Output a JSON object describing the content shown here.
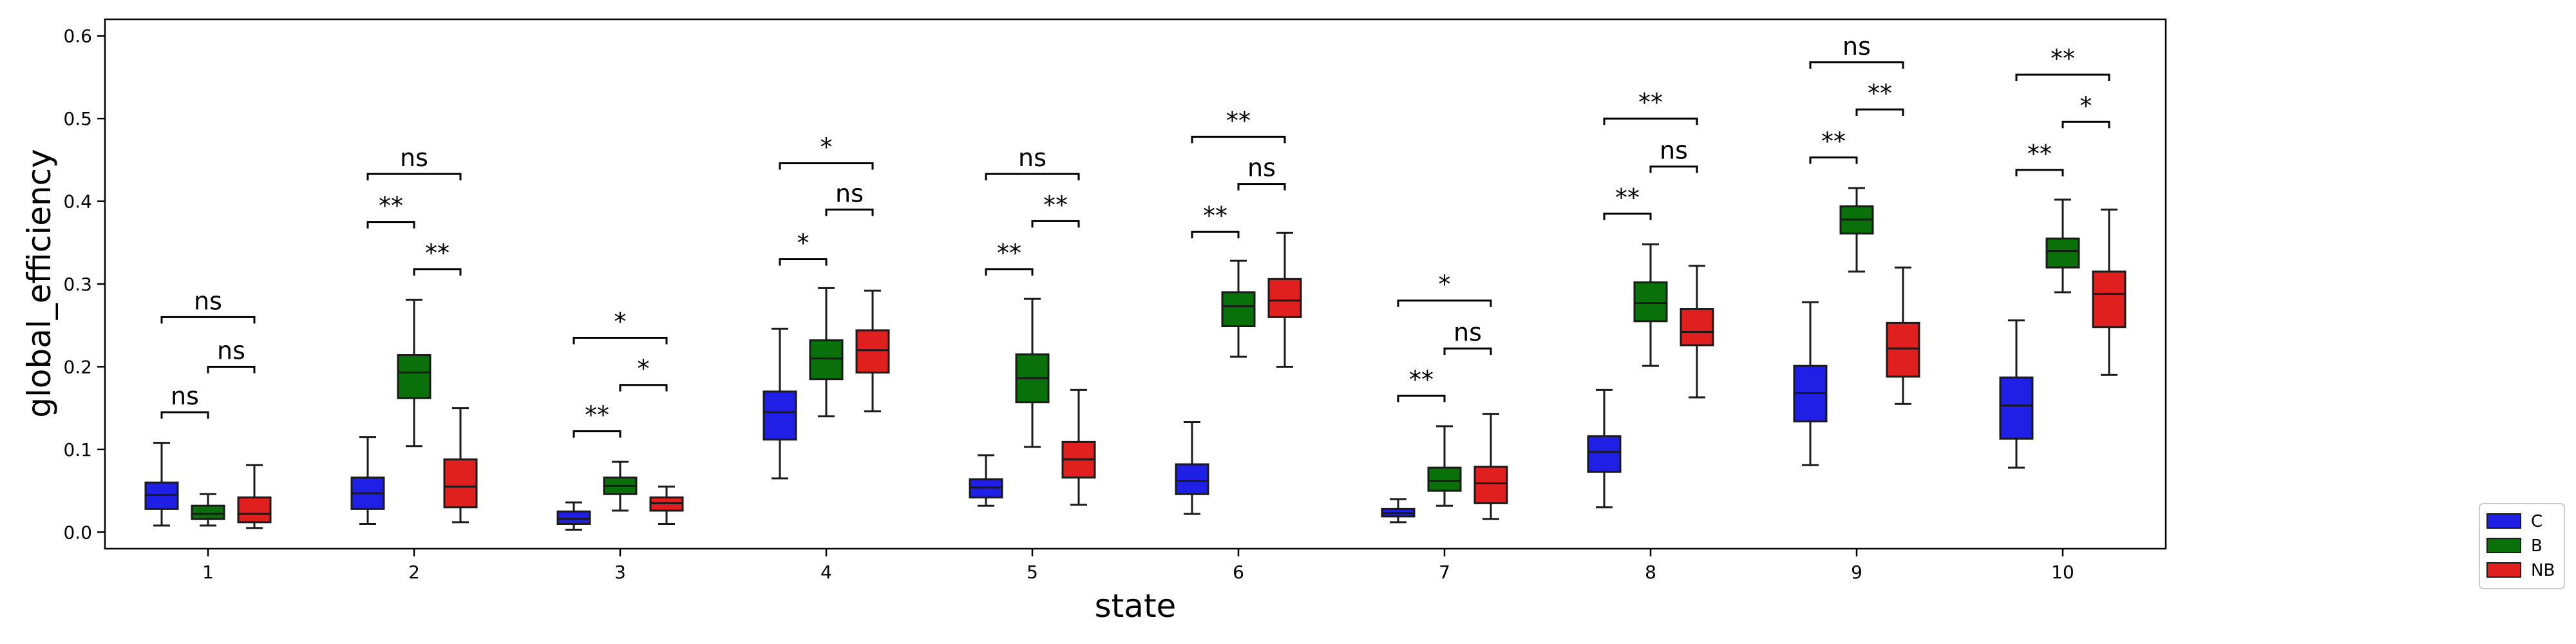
{
  "chart_data": {
    "type": "box",
    "title": "",
    "xlabel": "state",
    "ylabel": "global_efficiency",
    "ylim": [
      -0.02,
      0.62
    ],
    "yticks": [
      0.0,
      0.1,
      0.2,
      0.3,
      0.4,
      0.5,
      0.6
    ],
    "ytick_labels": [
      "0.0",
      "0.1",
      "0.2",
      "0.3",
      "0.4",
      "0.5",
      "0.6"
    ],
    "categories": [
      "1",
      "2",
      "3",
      "4",
      "5",
      "6",
      "7",
      "8",
      "9",
      "10"
    ],
    "legend_position": "outside-right",
    "series": [
      {
        "name": "C",
        "color": "#1f1fe6",
        "boxes": [
          {
            "wlo": 0.008,
            "q1": 0.028,
            "med": 0.045,
            "q3": 0.06,
            "whi": 0.108
          },
          {
            "wlo": 0.01,
            "q1": 0.028,
            "med": 0.047,
            "q3": 0.066,
            "whi": 0.115
          },
          {
            "wlo": 0.003,
            "q1": 0.01,
            "med": 0.016,
            "q3": 0.025,
            "whi": 0.036
          },
          {
            "wlo": 0.065,
            "q1": 0.112,
            "med": 0.145,
            "q3": 0.17,
            "whi": 0.246
          },
          {
            "wlo": 0.032,
            "q1": 0.042,
            "med": 0.054,
            "q3": 0.064,
            "whi": 0.093
          },
          {
            "wlo": 0.022,
            "q1": 0.046,
            "med": 0.062,
            "q3": 0.082,
            "whi": 0.133
          },
          {
            "wlo": 0.012,
            "q1": 0.019,
            "med": 0.023,
            "q3": 0.028,
            "whi": 0.04
          },
          {
            "wlo": 0.03,
            "q1": 0.073,
            "med": 0.097,
            "q3": 0.116,
            "whi": 0.172
          },
          {
            "wlo": 0.081,
            "q1": 0.134,
            "med": 0.168,
            "q3": 0.201,
            "whi": 0.278
          },
          {
            "wlo": 0.078,
            "q1": 0.113,
            "med": 0.153,
            "q3": 0.187,
            "whi": 0.256
          }
        ]
      },
      {
        "name": "B",
        "color": "#0a700a",
        "boxes": [
          {
            "wlo": 0.008,
            "q1": 0.016,
            "med": 0.022,
            "q3": 0.032,
            "whi": 0.046
          },
          {
            "wlo": 0.104,
            "q1": 0.162,
            "med": 0.193,
            "q3": 0.214,
            "whi": 0.281
          },
          {
            "wlo": 0.026,
            "q1": 0.046,
            "med": 0.056,
            "q3": 0.066,
            "whi": 0.085
          },
          {
            "wlo": 0.14,
            "q1": 0.185,
            "med": 0.21,
            "q3": 0.232,
            "whi": 0.295
          },
          {
            "wlo": 0.103,
            "q1": 0.157,
            "med": 0.186,
            "q3": 0.215,
            "whi": 0.282
          },
          {
            "wlo": 0.212,
            "q1": 0.249,
            "med": 0.273,
            "q3": 0.29,
            "whi": 0.328
          },
          {
            "wlo": 0.032,
            "q1": 0.05,
            "med": 0.062,
            "q3": 0.078,
            "whi": 0.128
          },
          {
            "wlo": 0.201,
            "q1": 0.255,
            "med": 0.277,
            "q3": 0.302,
            "whi": 0.348
          },
          {
            "wlo": 0.315,
            "q1": 0.361,
            "med": 0.378,
            "q3": 0.394,
            "whi": 0.416
          },
          {
            "wlo": 0.29,
            "q1": 0.32,
            "med": 0.34,
            "q3": 0.355,
            "whi": 0.402
          }
        ]
      },
      {
        "name": "NB",
        "color": "#e01f1f",
        "boxes": [
          {
            "wlo": 0.005,
            "q1": 0.012,
            "med": 0.022,
            "q3": 0.042,
            "whi": 0.081
          },
          {
            "wlo": 0.012,
            "q1": 0.03,
            "med": 0.055,
            "q3": 0.088,
            "whi": 0.15
          },
          {
            "wlo": 0.01,
            "q1": 0.026,
            "med": 0.035,
            "q3": 0.042,
            "whi": 0.055
          },
          {
            "wlo": 0.146,
            "q1": 0.193,
            "med": 0.22,
            "q3": 0.244,
            "whi": 0.292
          },
          {
            "wlo": 0.033,
            "q1": 0.066,
            "med": 0.088,
            "q3": 0.109,
            "whi": 0.172
          },
          {
            "wlo": 0.2,
            "q1": 0.26,
            "med": 0.28,
            "q3": 0.306,
            "whi": 0.362
          },
          {
            "wlo": 0.016,
            "q1": 0.035,
            "med": 0.059,
            "q3": 0.079,
            "whi": 0.143
          },
          {
            "wlo": 0.163,
            "q1": 0.226,
            "med": 0.242,
            "q3": 0.27,
            "whi": 0.322
          },
          {
            "wlo": 0.155,
            "q1": 0.188,
            "med": 0.222,
            "q3": 0.253,
            "whi": 0.32
          },
          {
            "wlo": 0.19,
            "q1": 0.248,
            "med": 0.288,
            "q3": 0.315,
            "whi": 0.39
          }
        ]
      }
    ],
    "annotations": [
      {
        "group": 0,
        "from": 0,
        "to": 1,
        "y": 0.145,
        "label": "ns"
      },
      {
        "group": 0,
        "from": 1,
        "to": 2,
        "y": 0.2,
        "label": "ns"
      },
      {
        "group": 0,
        "from": 0,
        "to": 2,
        "y": 0.26,
        "label": "ns"
      },
      {
        "group": 1,
        "from": 0,
        "to": 1,
        "y": 0.375,
        "label": "**"
      },
      {
        "group": 1,
        "from": 1,
        "to": 2,
        "y": 0.318,
        "label": "**"
      },
      {
        "group": 1,
        "from": 0,
        "to": 2,
        "y": 0.433,
        "label": "ns"
      },
      {
        "group": 2,
        "from": 0,
        "to": 1,
        "y": 0.122,
        "label": "**"
      },
      {
        "group": 2,
        "from": 1,
        "to": 2,
        "y": 0.178,
        "label": "*"
      },
      {
        "group": 2,
        "from": 0,
        "to": 2,
        "y": 0.235,
        "label": "*"
      },
      {
        "group": 3,
        "from": 0,
        "to": 1,
        "y": 0.33,
        "label": "*"
      },
      {
        "group": 3,
        "from": 1,
        "to": 2,
        "y": 0.39,
        "label": "ns"
      },
      {
        "group": 3,
        "from": 0,
        "to": 2,
        "y": 0.446,
        "label": "*"
      },
      {
        "group": 4,
        "from": 0,
        "to": 1,
        "y": 0.318,
        "label": "**"
      },
      {
        "group": 4,
        "from": 1,
        "to": 2,
        "y": 0.376,
        "label": "**"
      },
      {
        "group": 4,
        "from": 0,
        "to": 2,
        "y": 0.433,
        "label": "ns"
      },
      {
        "group": 5,
        "from": 0,
        "to": 1,
        "y": 0.363,
        "label": "**"
      },
      {
        "group": 5,
        "from": 1,
        "to": 2,
        "y": 0.421,
        "label": "ns"
      },
      {
        "group": 5,
        "from": 0,
        "to": 2,
        "y": 0.478,
        "label": "**"
      },
      {
        "group": 6,
        "from": 0,
        "to": 1,
        "y": 0.165,
        "label": "**"
      },
      {
        "group": 6,
        "from": 1,
        "to": 2,
        "y": 0.222,
        "label": "ns"
      },
      {
        "group": 6,
        "from": 0,
        "to": 2,
        "y": 0.28,
        "label": "*"
      },
      {
        "group": 7,
        "from": 0,
        "to": 1,
        "y": 0.385,
        "label": "**"
      },
      {
        "group": 7,
        "from": 1,
        "to": 2,
        "y": 0.442,
        "label": "ns"
      },
      {
        "group": 7,
        "from": 0,
        "to": 2,
        "y": 0.5,
        "label": "**"
      },
      {
        "group": 8,
        "from": 0,
        "to": 1,
        "y": 0.453,
        "label": "**"
      },
      {
        "group": 8,
        "from": 1,
        "to": 2,
        "y": 0.511,
        "label": "**"
      },
      {
        "group": 8,
        "from": 0,
        "to": 2,
        "y": 0.568,
        "label": "ns"
      },
      {
        "group": 9,
        "from": 0,
        "to": 1,
        "y": 0.438,
        "label": "**"
      },
      {
        "group": 9,
        "from": 1,
        "to": 2,
        "y": 0.496,
        "label": "*"
      },
      {
        "group": 9,
        "from": 0,
        "to": 2,
        "y": 0.553,
        "label": "**"
      }
    ]
  }
}
